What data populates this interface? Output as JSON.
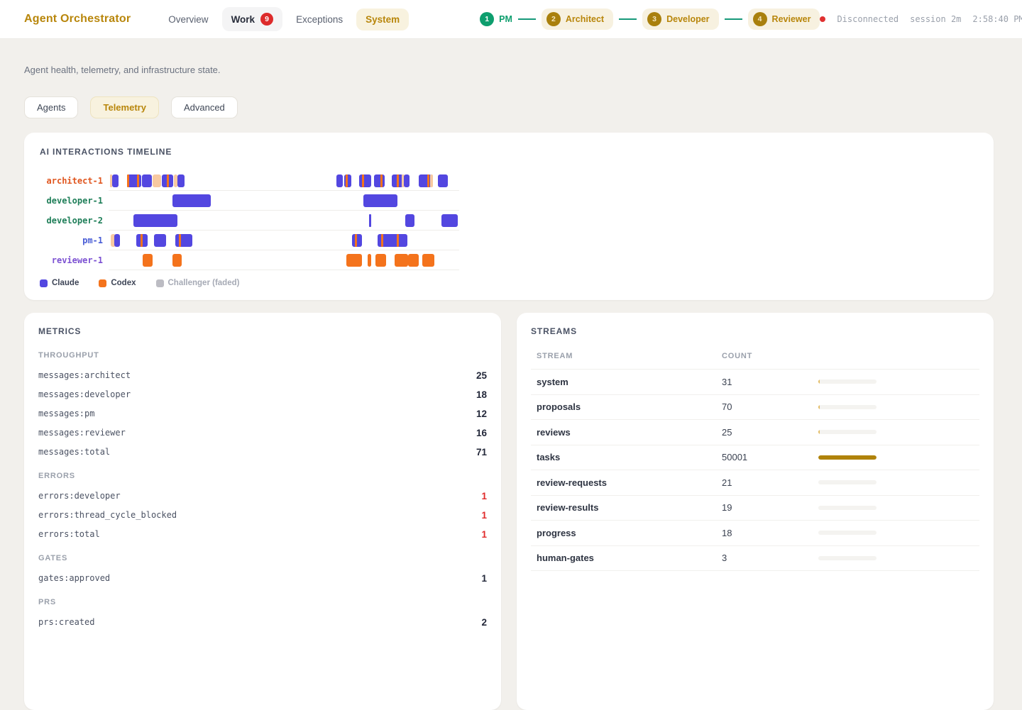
{
  "colors": {
    "brand_gold": "#b8860b",
    "accent_green": "#0e9e6e",
    "alert_red": "#df2b2b",
    "claude": "#5347e0",
    "codex": "#f4731c",
    "challenger": "#f7c9a1",
    "challenger_legend": "#bcbcc3",
    "stream_bar_full": "#b0830b",
    "stream_bar_tick": "#e3bc63"
  },
  "header": {
    "brand": "Agent Orchestrator",
    "nav": [
      {
        "label": "Overview",
        "style": "plain"
      },
      {
        "label": "Work",
        "style": "pill",
        "badge": "9"
      },
      {
        "label": "Exceptions",
        "style": "plain"
      },
      {
        "label": "System",
        "style": "active"
      }
    ],
    "stepper": [
      {
        "num": "1",
        "label": "PM",
        "circle": "#0e9e6e",
        "num_color": "#ffffff",
        "label_color": "#0e9e6e",
        "pill": false
      },
      {
        "num": "2",
        "label": "Architect",
        "circle": "#a9800d",
        "num_color": "#f3e4bb",
        "label_color": "#b8860b",
        "pill": true
      },
      {
        "num": "3",
        "label": "Developer",
        "circle": "#a9800d",
        "num_color": "#f3e4bb",
        "label_color": "#b8860b",
        "pill": true
      },
      {
        "num": "4",
        "label": "Reviewer",
        "circle": "#a9800d",
        "num_color": "#f3e4bb",
        "label_color": "#b8860b",
        "pill": true
      }
    ],
    "status": {
      "label": "Disconnected",
      "session": "session 2m",
      "time": "2:58:40 PM"
    }
  },
  "page": {
    "description": "Agent health, telemetry, and infrastructure state.",
    "tabs": [
      {
        "label": "Agents",
        "active": false
      },
      {
        "label": "Telemetry",
        "active": true
      },
      {
        "label": "Advanced",
        "active": false
      }
    ]
  },
  "timeline": {
    "title": "AI INTERACTIONS TIMELINE",
    "legend": [
      {
        "label": "Claude",
        "color_key": "claude",
        "muted": false
      },
      {
        "label": "Codex",
        "color_key": "codex",
        "muted": false
      },
      {
        "label": "Challenger (faded)",
        "color_key": "challenger_legend",
        "muted": true
      }
    ],
    "rows": [
      {
        "label": "architect-1",
        "color": "#e0561f",
        "bars": [
          {
            "s": 0.004,
            "w": 0.007,
            "c": "challenger"
          },
          {
            "s": 0.01,
            "w": 0.018,
            "c": "claude"
          },
          {
            "s": 0.053,
            "w": 0.041,
            "c": "claude"
          },
          {
            "s": 0.053,
            "w": 0.006,
            "c": "codex"
          },
          {
            "s": 0.081,
            "w": 0.006,
            "c": "codex"
          },
          {
            "s": 0.096,
            "w": 0.028,
            "c": "claude"
          },
          {
            "s": 0.126,
            "w": 0.024,
            "c": "challenger"
          },
          {
            "s": 0.152,
            "w": 0.033,
            "c": "claude"
          },
          {
            "s": 0.167,
            "w": 0.006,
            "c": "codex"
          },
          {
            "s": 0.187,
            "w": 0.01,
            "c": "challenger"
          },
          {
            "s": 0.197,
            "w": 0.02,
            "c": "claude"
          },
          {
            "s": 0.65,
            "w": 0.018,
            "c": "claude"
          },
          {
            "s": 0.673,
            "w": 0.02,
            "c": "claude"
          },
          {
            "s": 0.677,
            "w": 0.006,
            "c": "codex"
          },
          {
            "s": 0.715,
            "w": 0.033,
            "c": "claude"
          },
          {
            "s": 0.722,
            "w": 0.006,
            "c": "codex"
          },
          {
            "s": 0.758,
            "w": 0.03,
            "c": "claude"
          },
          {
            "s": 0.776,
            "w": 0.006,
            "c": "codex"
          },
          {
            "s": 0.807,
            "w": 0.033,
            "c": "claude"
          },
          {
            "s": 0.821,
            "w": 0.006,
            "c": "codex"
          },
          {
            "s": 0.837,
            "w": 0.008,
            "c": "challenger"
          },
          {
            "s": 0.843,
            "w": 0.016,
            "c": "claude"
          },
          {
            "s": 0.884,
            "w": 0.037,
            "c": "claude"
          },
          {
            "s": 0.909,
            "w": 0.006,
            "c": "codex"
          },
          {
            "s": 0.917,
            "w": 0.008,
            "c": "challenger"
          },
          {
            "s": 0.939,
            "w": 0.028,
            "c": "claude"
          }
        ]
      },
      {
        "label": "developer-1",
        "color": "#1e7e58",
        "bars": [
          {
            "s": 0.183,
            "w": 0.108,
            "c": "claude"
          },
          {
            "s": 0.726,
            "w": 0.098,
            "c": "claude"
          }
        ]
      },
      {
        "label": "developer-2",
        "color": "#1e7e58",
        "bars": [
          {
            "s": 0.071,
            "w": 0.126,
            "c": "claude"
          },
          {
            "s": 0.742,
            "w": 0.006,
            "c": "claude"
          },
          {
            "s": 0.846,
            "w": 0.026,
            "c": "claude"
          },
          {
            "s": 0.949,
            "w": 0.047,
            "c": "claude"
          }
        ]
      },
      {
        "label": "pm-1",
        "color": "#4a5ed6",
        "bars": [
          {
            "s": 0.006,
            "w": 0.014,
            "c": "challenger"
          },
          {
            "s": 0.016,
            "w": 0.016,
            "c": "claude"
          },
          {
            "s": 0.079,
            "w": 0.033,
            "c": "claude"
          },
          {
            "s": 0.091,
            "w": 0.006,
            "c": "codex"
          },
          {
            "s": 0.13,
            "w": 0.033,
            "c": "claude"
          },
          {
            "s": 0.191,
            "w": 0.047,
            "c": "claude"
          },
          {
            "s": 0.201,
            "w": 0.006,
            "c": "codex"
          },
          {
            "s": 0.695,
            "w": 0.028,
            "c": "claude"
          },
          {
            "s": 0.703,
            "w": 0.006,
            "c": "codex"
          },
          {
            "s": 0.768,
            "w": 0.085,
            "c": "claude"
          },
          {
            "s": 0.778,
            "w": 0.006,
            "c": "codex"
          },
          {
            "s": 0.821,
            "w": 0.006,
            "c": "codex"
          }
        ]
      },
      {
        "label": "reviewer-1",
        "color": "#7b50d2",
        "bars": [
          {
            "s": 0.098,
            "w": 0.028,
            "c": "codex"
          },
          {
            "s": 0.183,
            "w": 0.026,
            "c": "codex"
          },
          {
            "s": 0.679,
            "w": 0.043,
            "c": "codex"
          },
          {
            "s": 0.738,
            "w": 0.01,
            "c": "codex"
          },
          {
            "s": 0.762,
            "w": 0.03,
            "c": "codex"
          },
          {
            "s": 0.815,
            "w": 0.039,
            "c": "codex"
          },
          {
            "s": 0.854,
            "w": 0.03,
            "c": "codex"
          },
          {
            "s": 0.894,
            "w": 0.035,
            "c": "codex"
          }
        ]
      }
    ]
  },
  "metrics": {
    "title": "METRICS",
    "sections": [
      {
        "title": "THROUGHPUT",
        "rows": [
          {
            "key": "messages:architect",
            "value": "25",
            "alert": false
          },
          {
            "key": "messages:developer",
            "value": "18",
            "alert": false
          },
          {
            "key": "messages:pm",
            "value": "12",
            "alert": false
          },
          {
            "key": "messages:reviewer",
            "value": "16",
            "alert": false
          },
          {
            "key": "messages:total",
            "value": "71",
            "alert": false
          }
        ]
      },
      {
        "title": "ERRORS",
        "rows": [
          {
            "key": "errors:developer",
            "value": "1",
            "alert": true
          },
          {
            "key": "errors:thread_cycle_blocked",
            "value": "1",
            "alert": true
          },
          {
            "key": "errors:total",
            "value": "1",
            "alert": true
          }
        ]
      },
      {
        "title": "GATES",
        "rows": [
          {
            "key": "gates:approved",
            "value": "1",
            "alert": false
          }
        ]
      },
      {
        "title": "PRS",
        "rows": [
          {
            "key": "prs:created",
            "value": "2",
            "alert": false
          }
        ]
      }
    ]
  },
  "streams": {
    "title": "STREAMS",
    "columns": [
      "STREAM",
      "COUNT"
    ],
    "rows": [
      {
        "name": "system",
        "count": "31",
        "fill": 0.03
      },
      {
        "name": "proposals",
        "count": "70",
        "fill": 0.03
      },
      {
        "name": "reviews",
        "count": "25",
        "fill": 0.03
      },
      {
        "name": "tasks",
        "count": "50001",
        "fill": 1
      },
      {
        "name": "review-requests",
        "count": "21",
        "fill": 0
      },
      {
        "name": "review-results",
        "count": "19",
        "fill": 0
      },
      {
        "name": "progress",
        "count": "18",
        "fill": 0
      },
      {
        "name": "human-gates",
        "count": "3",
        "fill": 0
      }
    ]
  }
}
